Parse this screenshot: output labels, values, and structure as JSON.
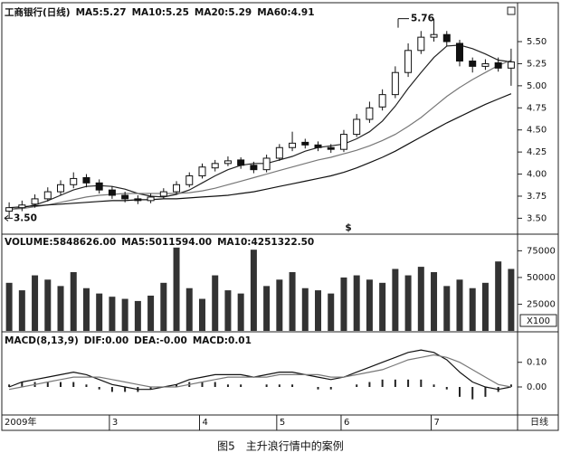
{
  "chart_data": [
    {
      "type": "candlestick",
      "title": "工商银行(日线)",
      "indicators": [
        "MA5:5.27",
        "MA10:5.25",
        "MA20:5.29",
        "MA60:4.91"
      ],
      "open": [
        3.58,
        3.62,
        3.66,
        3.72,
        3.8,
        3.88,
        3.96,
        3.9,
        3.82,
        3.76,
        3.72,
        3.7,
        3.75,
        3.8,
        3.88,
        3.98,
        4.07,
        4.12,
        4.16,
        4.1,
        4.05,
        4.18,
        4.3,
        4.36,
        4.33,
        4.3,
        4.28,
        4.45,
        4.62,
        4.76,
        4.9,
        5.15,
        5.4,
        5.55,
        5.58,
        5.48,
        5.28,
        5.22,
        5.26,
        5.2
      ],
      "high": [
        3.68,
        3.7,
        3.77,
        3.85,
        3.93,
        4.02,
        4.0,
        3.94,
        3.86,
        3.8,
        3.76,
        3.78,
        3.84,
        3.92,
        4.02,
        4.12,
        4.16,
        4.2,
        4.19,
        4.14,
        4.22,
        4.34,
        4.48,
        4.4,
        4.37,
        4.34,
        4.5,
        4.68,
        4.82,
        4.96,
        5.22,
        5.48,
        5.62,
        5.76,
        5.62,
        5.52,
        5.32,
        5.3,
        5.32,
        5.42
      ],
      "low": [
        3.5,
        3.58,
        3.62,
        3.69,
        3.76,
        3.84,
        3.85,
        3.78,
        3.72,
        3.68,
        3.66,
        3.67,
        3.72,
        3.77,
        3.85,
        3.95,
        4.03,
        4.09,
        4.06,
        4.01,
        4.02,
        4.15,
        4.26,
        4.29,
        4.26,
        4.24,
        4.25,
        4.42,
        4.58,
        4.72,
        4.86,
        5.1,
        5.36,
        5.5,
        5.45,
        5.22,
        5.15,
        5.18,
        5.16,
        5.0
      ],
      "close": [
        3.62,
        3.65,
        3.72,
        3.8,
        3.88,
        3.95,
        3.9,
        3.82,
        3.76,
        3.72,
        3.7,
        3.74,
        3.8,
        3.88,
        3.98,
        4.08,
        4.12,
        4.15,
        4.1,
        4.05,
        4.18,
        4.3,
        4.35,
        4.33,
        4.3,
        4.28,
        4.45,
        4.62,
        4.75,
        4.9,
        5.15,
        5.4,
        5.55,
        5.58,
        5.5,
        5.28,
        5.22,
        5.25,
        5.2,
        5.27
      ],
      "series": [
        {
          "name": "MA5",
          "color": "#222222",
          "values": [
            3.6,
            3.62,
            3.65,
            3.7,
            3.76,
            3.82,
            3.86,
            3.87,
            3.86,
            3.83,
            3.78,
            3.75,
            3.74,
            3.77,
            3.82,
            3.9,
            3.98,
            4.05,
            4.1,
            4.12,
            4.12,
            4.16,
            4.2,
            4.26,
            4.3,
            4.32,
            4.34,
            4.4,
            4.48,
            4.6,
            4.77,
            4.97,
            5.15,
            5.32,
            5.45,
            5.46,
            5.42,
            5.36,
            5.29,
            5.27
          ]
        },
        {
          "name": "MA20",
          "color": "#777777",
          "values": [
            3.6,
            3.61,
            3.63,
            3.65,
            3.68,
            3.71,
            3.74,
            3.76,
            3.77,
            3.78,
            3.78,
            3.78,
            3.78,
            3.78,
            3.79,
            3.81,
            3.84,
            3.88,
            3.92,
            3.96,
            4.0,
            4.04,
            4.08,
            4.12,
            4.16,
            4.19,
            4.23,
            4.27,
            4.32,
            4.38,
            4.45,
            4.54,
            4.64,
            4.76,
            4.88,
            4.98,
            5.07,
            5.15,
            5.23,
            5.29
          ]
        },
        {
          "name": "MA60",
          "color": "#111111",
          "values": [
            3.62,
            3.63,
            3.64,
            3.65,
            3.66,
            3.67,
            3.68,
            3.69,
            3.7,
            3.7,
            3.71,
            3.71,
            3.72,
            3.72,
            3.73,
            3.74,
            3.75,
            3.76,
            3.78,
            3.8,
            3.83,
            3.86,
            3.89,
            3.92,
            3.95,
            3.98,
            4.02,
            4.07,
            4.13,
            4.19,
            4.26,
            4.34,
            4.42,
            4.5,
            4.58,
            4.65,
            4.72,
            4.79,
            4.85,
            4.91
          ]
        }
      ],
      "high_label": 5.76,
      "low_label": {
        "value": 3.5,
        "label": "3.50"
      },
      "marker": "$",
      "ylim": [
        3.33,
        5.92
      ],
      "yticks": [
        {
          "value": 3.5,
          "label": "3.50"
        },
        {
          "value": 3.75,
          "label": "3.75"
        },
        {
          "value": 4.0,
          "label": "4.00"
        },
        {
          "value": 4.25,
          "label": "4.25"
        },
        {
          "value": 4.5,
          "label": "4.50"
        },
        {
          "value": 4.75,
          "label": "4.75"
        },
        {
          "value": 5.0,
          "label": "5.00"
        },
        {
          "value": 5.25,
          "label": "5.25"
        },
        {
          "value": 5.5,
          "label": "5.50"
        }
      ]
    },
    {
      "type": "bar",
      "indicators": [
        "VOLUME:5848626.00",
        "MA5:5011594.00",
        "MA10:4251322.50"
      ],
      "unit": "X100",
      "color": "#333333",
      "values": [
        45000,
        38000,
        52000,
        48000,
        42000,
        55000,
        40000,
        35000,
        32000,
        30000,
        28000,
        33000,
        45000,
        78000,
        40000,
        30000,
        52000,
        38000,
        35000,
        76000,
        42000,
        48000,
        55000,
        40000,
        38000,
        35000,
        50000,
        52000,
        48000,
        45000,
        58000,
        52000,
        60000,
        55000,
        42000,
        48000,
        40000,
        45000,
        65000,
        58000
      ],
      "ylim": [
        0,
        88000
      ],
      "yticks": [
        25000,
        50000,
        75000
      ]
    },
    {
      "type": "macd",
      "indicators": [
        "MACD(8,13,9)",
        "DIF:0.00",
        "DEA:-0.00",
        "MACD:0.01"
      ],
      "color": "#222222",
      "values": [
        0.01,
        0.02,
        0.02,
        0.02,
        0.02,
        0.02,
        0.01,
        -0.01,
        -0.02,
        -0.02,
        -0.02,
        -0.01,
        0,
        0.01,
        0.02,
        0.02,
        0.02,
        0.01,
        0.01,
        0,
        0.01,
        0.01,
        0.01,
        0,
        -0.01,
        -0.01,
        0,
        0.01,
        0.02,
        0.03,
        0.03,
        0.03,
        0.03,
        0.01,
        -0.01,
        -0.04,
        -0.05,
        -0.04,
        -0.02,
        0.01
      ],
      "series": [
        {
          "name": "DIF",
          "color": "#111111",
          "values": [
            0.0,
            0.02,
            0.03,
            0.04,
            0.05,
            0.06,
            0.05,
            0.03,
            0.01,
            0.0,
            -0.01,
            -0.01,
            0.0,
            0.01,
            0.03,
            0.04,
            0.05,
            0.05,
            0.05,
            0.04,
            0.05,
            0.06,
            0.06,
            0.05,
            0.04,
            0.03,
            0.04,
            0.06,
            0.08,
            0.1,
            0.12,
            0.14,
            0.15,
            0.14,
            0.11,
            0.06,
            0.02,
            0.0,
            -0.01,
            0.0
          ]
        },
        {
          "name": "DEA",
          "color": "#777777",
          "values": [
            -0.01,
            0.0,
            0.01,
            0.02,
            0.03,
            0.04,
            0.04,
            0.04,
            0.03,
            0.02,
            0.01,
            0.0,
            0.0,
            0.0,
            0.01,
            0.02,
            0.03,
            0.04,
            0.04,
            0.04,
            0.04,
            0.05,
            0.05,
            0.05,
            0.05,
            0.04,
            0.04,
            0.05,
            0.06,
            0.07,
            0.09,
            0.11,
            0.12,
            0.13,
            0.12,
            0.1,
            0.07,
            0.04,
            0.01,
            0.0
          ]
        }
      ],
      "ylim": [
        -0.11,
        0.22
      ],
      "yticks": [
        {
          "value": 0,
          "label": "0.00"
        },
        {
          "value": 0.1,
          "label": "0.10"
        }
      ]
    }
  ],
  "x_axis": {
    "ticks": [
      {
        "value": 0,
        "label": "2009年"
      },
      {
        "value": 8,
        "label": "3"
      },
      {
        "value": 15,
        "label": "4"
      },
      {
        "value": 21,
        "label": "5"
      },
      {
        "value": 26,
        "label": "6"
      },
      {
        "value": 33,
        "label": "7"
      }
    ],
    "period": "日线"
  },
  "caption": "图5　主升浪行情中的案例"
}
